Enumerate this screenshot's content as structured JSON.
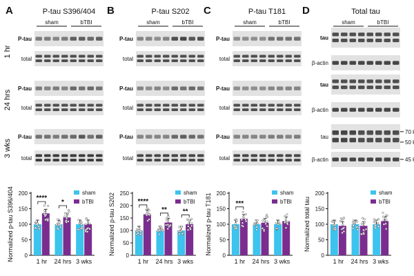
{
  "colors": {
    "sham": "#3cc3ee",
    "btbi": "#7b2d8f",
    "blot_bg": "#e2e2e2",
    "band": "#2a2a2a"
  },
  "panels": [
    {
      "letter": "A",
      "title": "P-tau S396/404",
      "group_sham": "sham",
      "group_btbi": "bTBI",
      "blots": [
        {
          "label": "P-tau",
          "bold": true,
          "lanes": [
            0.55,
            0.55,
            0.5,
            0.55,
            0.7,
            0.7,
            0.65,
            0.7
          ],
          "double": false
        },
        {
          "label": "total",
          "bold": false,
          "lanes": [
            0.8,
            0.8,
            0.8,
            0.8,
            0.8,
            0.8,
            0.8,
            0.8
          ],
          "double": true
        },
        {
          "label": "P-tau",
          "bold": true,
          "lanes": [
            0.55,
            0.5,
            0.55,
            0.5,
            0.65,
            0.6,
            0.65,
            0.6
          ],
          "double": false
        },
        {
          "label": "total",
          "bold": false,
          "lanes": [
            0.8,
            0.8,
            0.8,
            0.8,
            0.8,
            0.8,
            0.8,
            0.8
          ],
          "double": true
        },
        {
          "label": "P-tau",
          "bold": true,
          "lanes": [
            0.6,
            0.6,
            0.55,
            0.6,
            0.65,
            0.75,
            0.6,
            0.7
          ],
          "double": false
        },
        {
          "label": "total",
          "bold": false,
          "lanes": [
            0.9,
            0.9,
            0.9,
            0.9,
            0.9,
            0.9,
            0.9,
            0.9
          ],
          "double": true
        }
      ],
      "chart": {
        "ylabel": "Normalized p-tau S396/404",
        "yticks": [
          "0",
          "50",
          "100",
          "150",
          "200"
        ],
        "ylim": [
          0,
          200
        ],
        "categories": [
          "1 hr",
          "24 hrs",
          "3 wks"
        ],
        "sham": [
          100,
          100,
          100
        ],
        "btbi": [
          135,
          122,
          100
        ],
        "sig": [
          "****",
          "*",
          ""
        ]
      }
    },
    {
      "letter": "B",
      "title": "P-tau S202",
      "group_sham": "sham",
      "group_btbi": "bTBI",
      "blots": [
        {
          "label": "P-tau",
          "bold": true,
          "lanes": [
            0.5,
            0.5,
            0.45,
            0.5,
            0.8,
            0.85,
            0.75,
            0.8
          ],
          "double": false
        },
        {
          "label": "total",
          "bold": false,
          "lanes": [
            0.8,
            0.8,
            0.8,
            0.8,
            0.8,
            0.8,
            0.8,
            0.8
          ],
          "double": true
        },
        {
          "label": "P-tau",
          "bold": true,
          "lanes": [
            0.5,
            0.45,
            0.5,
            0.45,
            0.65,
            0.6,
            0.65,
            0.6
          ],
          "double": false
        },
        {
          "label": "total",
          "bold": false,
          "lanes": [
            0.8,
            0.8,
            0.8,
            0.8,
            0.8,
            0.8,
            0.8,
            0.8
          ],
          "double": true
        },
        {
          "label": "P-tau",
          "bold": true,
          "lanes": [
            0.5,
            0.5,
            0.5,
            0.5,
            0.65,
            0.7,
            0.65,
            0.6
          ],
          "double": false
        },
        {
          "label": "total",
          "bold": false,
          "lanes": [
            0.85,
            0.85,
            0.85,
            0.85,
            0.85,
            0.85,
            0.85,
            0.85
          ],
          "double": true
        }
      ],
      "chart": {
        "ylabel": "Normalized p-tau S202",
        "yticks": [
          "0",
          "50",
          "100",
          "150",
          "200",
          "250"
        ],
        "ylim": [
          0,
          250
        ],
        "categories": [
          "1 hr",
          "24 hrs",
          "3 wks"
        ],
        "sham": [
          100,
          100,
          100
        ],
        "btbi": [
          165,
          132,
          125
        ],
        "sig": [
          "****",
          "**",
          "**"
        ]
      }
    },
    {
      "letter": "C",
      "title": "P-tau T181",
      "group_sham": "sham",
      "group_btbi": "bTBI",
      "blots": [
        {
          "label": "P-tau",
          "bold": true,
          "lanes": [
            0.45,
            0.45,
            0.45,
            0.45,
            0.6,
            0.6,
            0.6,
            0.6
          ],
          "double": false
        },
        {
          "label": "total",
          "bold": false,
          "lanes": [
            0.8,
            0.8,
            0.8,
            0.8,
            0.8,
            0.8,
            0.8,
            0.8
          ],
          "double": true
        },
        {
          "label": "P-tau",
          "bold": true,
          "lanes": [
            0.45,
            0.45,
            0.45,
            0.45,
            0.5,
            0.5,
            0.5,
            0.5
          ],
          "double": false
        },
        {
          "label": "total",
          "bold": false,
          "lanes": [
            0.8,
            0.8,
            0.8,
            0.8,
            0.8,
            0.8,
            0.8,
            0.8
          ],
          "double": true
        },
        {
          "label": "P-tau",
          "bold": true,
          "lanes": [
            0.5,
            0.5,
            0.5,
            0.5,
            0.55,
            0.55,
            0.5,
            0.55
          ],
          "double": false
        },
        {
          "label": "total",
          "bold": false,
          "lanes": [
            0.85,
            0.85,
            0.85,
            0.85,
            0.85,
            0.85,
            0.85,
            0.85
          ],
          "double": true
        }
      ],
      "chart": {
        "ylabel": "Normalized p-tau T181",
        "yticks": [
          "0",
          "50",
          "100",
          "150",
          "200"
        ],
        "ylim": [
          0,
          200
        ],
        "categories": [
          "1 hr",
          "24 hrs",
          "3 wks"
        ],
        "sham": [
          100,
          100,
          100
        ],
        "btbi": [
          118,
          105,
          110
        ],
        "sig": [
          "***",
          "",
          ""
        ]
      }
    },
    {
      "letter": "D",
      "title": "Total tau",
      "group_sham": "sham",
      "group_btbi": "bTBI",
      "blots": [
        {
          "label": "tau",
          "bold": true,
          "lanes": [
            0.8,
            0.8,
            0.8,
            0.8,
            0.8,
            0.8,
            0.8,
            0.8
          ],
          "double": true,
          "size": 29
        },
        {
          "label": "β-actin",
          "bold": false,
          "lanes": [
            0.85,
            0.85,
            0.85,
            0.85,
            0.85,
            0.85,
            0.85,
            0.85
          ],
          "double": false,
          "size": 22
        },
        {
          "label": "tau",
          "bold": true,
          "lanes": [
            0.8,
            0.8,
            0.8,
            0.8,
            0.8,
            0.8,
            0.8,
            0.8
          ],
          "double": true,
          "size": 29
        },
        {
          "label": "β-actin",
          "bold": false,
          "lanes": [
            0.85,
            0.85,
            0.85,
            0.85,
            0.85,
            0.85,
            0.85,
            0.85
          ],
          "double": false,
          "size": 22
        },
        {
          "label": "tau",
          "bold": false,
          "lanes": [
            0.85,
            0.85,
            0.85,
            0.8,
            0.8,
            0.8,
            0.8,
            0.8
          ],
          "double": true,
          "size": 36
        },
        {
          "label": "β-actin",
          "bold": false,
          "lanes": [
            0.85,
            0.85,
            0.85,
            0.85,
            0.85,
            0.85,
            0.85,
            0.85
          ],
          "double": false,
          "size": 22
        }
      ],
      "mw": [
        {
          "text": "70 kDa",
          "blot": 4,
          "pos": 0.3
        },
        {
          "text": "50 kDa",
          "blot": 4,
          "pos": 0.72
        },
        {
          "text": "45 kDa",
          "blot": 5,
          "pos": 0.5
        }
      ],
      "chart": {
        "ylabel": "Normalized total tau",
        "yticks": [
          "0",
          "50",
          "100",
          "150",
          "200"
        ],
        "ylim": [
          0,
          200
        ],
        "categories": [
          "1 hr",
          "24 hrs",
          "3 wks"
        ],
        "sham": [
          100,
          100,
          100
        ],
        "btbi": [
          95,
          95,
          110
        ],
        "sig": [
          "",
          "",
          ""
        ]
      }
    }
  ],
  "row_labels": [
    "1 hr",
    "24 hrs",
    "3 wks"
  ],
  "legend": {
    "sham": "sham",
    "btbi": "bTBI"
  },
  "chart_data": [
    {
      "type": "bar",
      "ylabel": "Normalized p-tau S396/404",
      "ylim": [
        0,
        200
      ],
      "categories": [
        "1 hr",
        "24 hrs",
        "3 wks"
      ],
      "series": [
        {
          "name": "sham",
          "values": [
            100,
            100,
            100
          ]
        },
        {
          "name": "bTBI",
          "values": [
            135,
            122,
            100
          ]
        }
      ],
      "annotations": [
        "****",
        "*"
      ]
    },
    {
      "type": "bar",
      "ylabel": "Normalized p-tau S202",
      "ylim": [
        0,
        250
      ],
      "categories": [
        "1 hr",
        "24 hrs",
        "3 wks"
      ],
      "series": [
        {
          "name": "sham",
          "values": [
            100,
            100,
            100
          ]
        },
        {
          "name": "bTBI",
          "values": [
            165,
            132,
            125
          ]
        }
      ],
      "annotations": [
        "****",
        "**",
        "**"
      ]
    },
    {
      "type": "bar",
      "ylabel": "Normalized p-tau T181",
      "ylim": [
        0,
        200
      ],
      "categories": [
        "1 hr",
        "24 hrs",
        "3 wks"
      ],
      "series": [
        {
          "name": "sham",
          "values": [
            100,
            100,
            100
          ]
        },
        {
          "name": "bTBI",
          "values": [
            118,
            105,
            110
          ]
        }
      ],
      "annotations": [
        "***"
      ]
    },
    {
      "type": "bar",
      "ylabel": "Normalized total tau",
      "ylim": [
        0,
        200
      ],
      "categories": [
        "1 hr",
        "24 hrs",
        "3 wks"
      ],
      "series": [
        {
          "name": "sham",
          "values": [
            100,
            100,
            100
          ]
        },
        {
          "name": "bTBI",
          "values": [
            95,
            95,
            110
          ]
        }
      ]
    }
  ]
}
